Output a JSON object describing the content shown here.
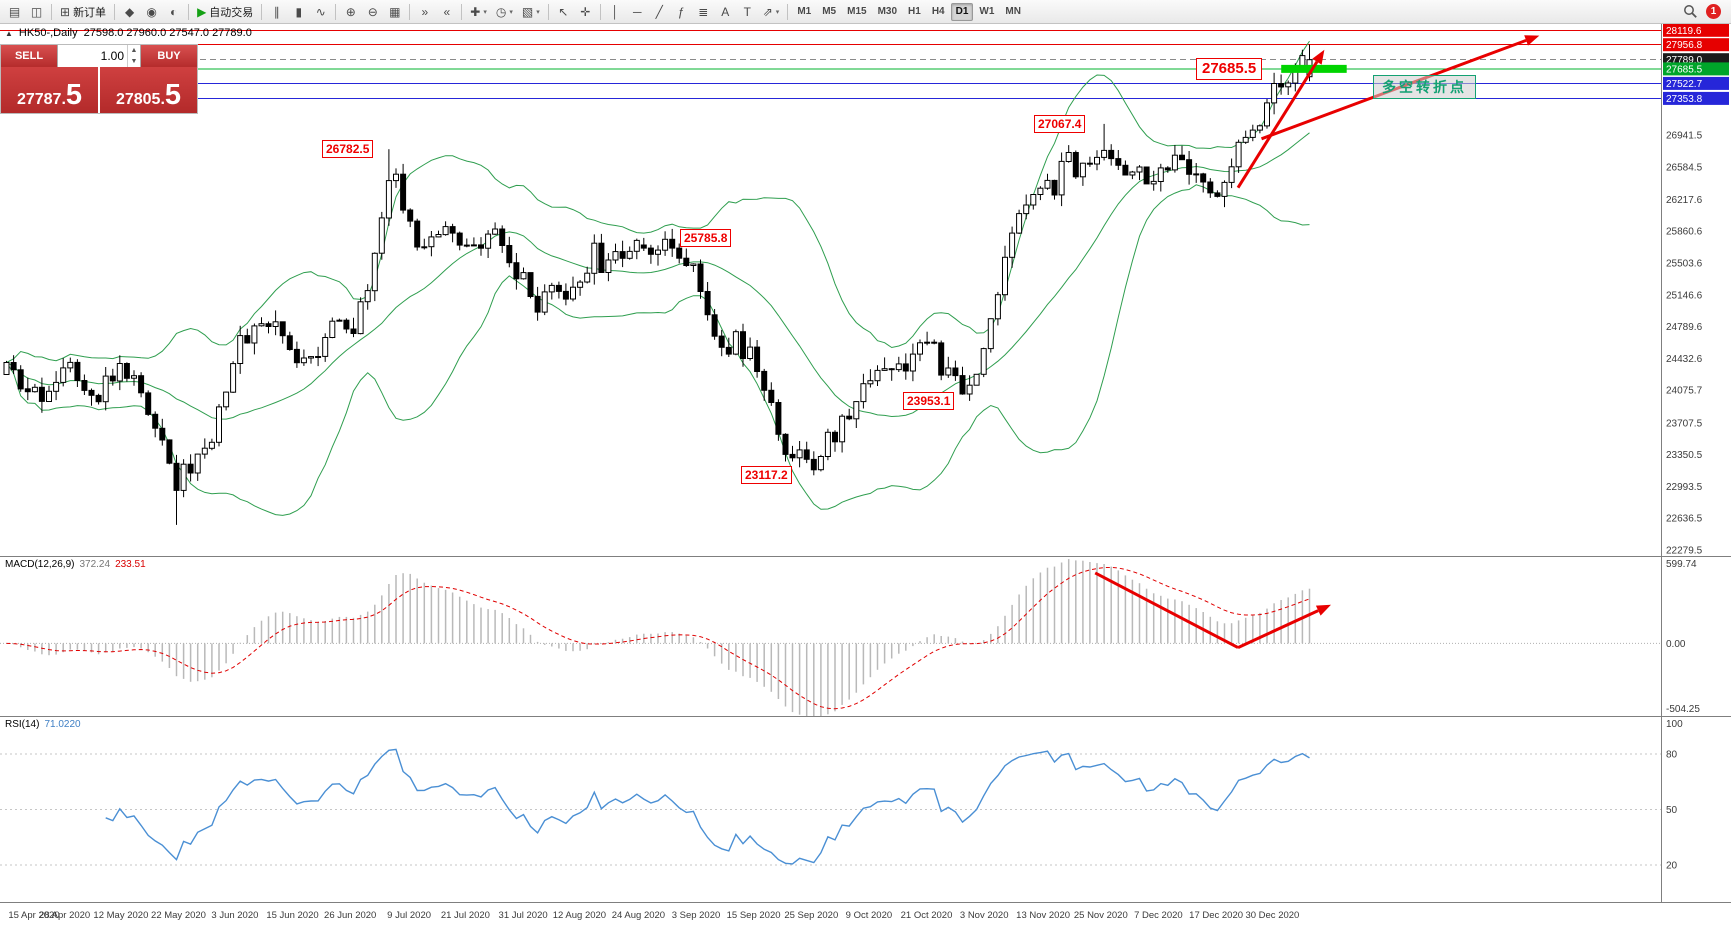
{
  "toolbar": {
    "items": [
      {
        "glyph": "▤",
        "name": "market-watch-icon"
      },
      {
        "glyph": "◫",
        "name": "data-window-icon"
      },
      {
        "sep": true
      },
      {
        "glyph": "⊞",
        "name": "new-order-icon",
        "label": "新订单"
      },
      {
        "sep": true
      },
      {
        "glyph": "◆",
        "name": "deposit-icon"
      },
      {
        "glyph": "◉",
        "name": "community-icon"
      },
      {
        "glyph": "◐",
        "name": "history-center-icon"
      },
      {
        "sep": true
      },
      {
        "glyph": "▶",
        "name": "autotrading-icon",
        "label": "自动交易",
        "green": true
      },
      {
        "sep": true
      },
      {
        "glyph": "∥",
        "name": "bar-chart-icon"
      },
      {
        "glyph": "▮",
        "name": "candlestick-chart-icon"
      },
      {
        "glyph": "∿",
        "name": "line-chart-icon"
      },
      {
        "sep": true
      },
      {
        "glyph": "⊕",
        "name": "zoom-in-icon"
      },
      {
        "glyph": "⊖",
        "name": "zoom-out-icon"
      },
      {
        "glyph": "▦",
        "name": "tile-windows-icon"
      },
      {
        "sep": true
      },
      {
        "glyph": "»",
        "name": "auto-scroll-icon"
      },
      {
        "glyph": "«",
        "name": "chart-shift-icon"
      },
      {
        "sep": true
      },
      {
        "glyph": "✚",
        "name": "indicators-icon",
        "caret": true
      },
      {
        "glyph": "◷",
        "name": "periods-icon",
        "caret": true
      },
      {
        "glyph": "▧",
        "name": "templates-icon",
        "caret": true
      },
      {
        "sep": true
      },
      {
        "glyph": "↖",
        "name": "cursor-icon"
      },
      {
        "glyph": "✛",
        "name": "crosshair-icon"
      },
      {
        "sep": true
      },
      {
        "glyph": "│",
        "name": "vertical-line-icon"
      },
      {
        "glyph": "─",
        "name": "horizontal-line-icon"
      },
      {
        "glyph": "╱",
        "name": "trendline-icon"
      },
      {
        "glyph": "ƒ",
        "name": "fibonacci-icon"
      },
      {
        "glyph": "≣",
        "name": "channel-icon"
      },
      {
        "glyph": "A",
        "name": "text-icon"
      },
      {
        "glyph": "T",
        "name": "label-icon"
      },
      {
        "glyph": "⇗",
        "name": "arrow-objects-icon",
        "caret": true
      },
      {
        "sep": true
      }
    ],
    "timeframes": [
      "M1",
      "M5",
      "M15",
      "M30",
      "H1",
      "H4",
      "D1",
      "W1",
      "MN"
    ],
    "active_timeframe": "D1",
    "badge": "1"
  },
  "chart_header": {
    "collapse": "▲",
    "symbol": "HK50-,Daily",
    "ohlc": "27598.0 27960.0 27547.0 27789.0"
  },
  "trade_panel": {
    "sell_label": "SELL",
    "buy_label": "BUY",
    "lot": "1.00",
    "sell_price": "27787.5",
    "buy_price": "27805.5"
  },
  "macd_panel": {
    "label": "MACD(12,26,9)",
    "value_main": "372.24",
    "value_signal": "233.51"
  },
  "rsi_panel": {
    "label": "RSI(14)",
    "value": "71.0220"
  },
  "chart_data": {
    "type": "candlestick",
    "symbol": "HK50-",
    "period": "Daily",
    "last_candle_ohlc": [
      27598.0,
      27960.0,
      27547.0,
      27789.0
    ],
    "main_ylim": [
      22210,
      28190
    ],
    "candle_count": 185,
    "bollinger": {
      "period": 20,
      "deviation": 2
    },
    "price_path": [
      [
        0.0,
        24250
      ],
      [
        0.023,
        23950
      ],
      [
        0.047,
        24450
      ],
      [
        0.069,
        24050
      ],
      [
        0.09,
        24350
      ],
      [
        0.107,
        23900
      ],
      [
        0.122,
        23600
      ],
      [
        0.128,
        22980
      ],
      [
        0.135,
        23120
      ],
      [
        0.153,
        23400
      ],
      [
        0.177,
        24550
      ],
      [
        0.195,
        24900
      ],
      [
        0.21,
        24700
      ],
      [
        0.221,
        24450
      ],
      [
        0.237,
        24550
      ],
      [
        0.252,
        24900
      ],
      [
        0.265,
        24750
      ],
      [
        0.279,
        25150
      ],
      [
        0.29,
        26250
      ],
      [
        0.296,
        26600
      ],
      [
        0.305,
        26100
      ],
      [
        0.317,
        25600
      ],
      [
        0.328,
        25850
      ],
      [
        0.34,
        26050
      ],
      [
        0.351,
        25650
      ],
      [
        0.363,
        25550
      ],
      [
        0.374,
        25850
      ],
      [
        0.385,
        25500
      ],
      [
        0.397,
        25250
      ],
      [
        0.408,
        24950
      ],
      [
        0.42,
        25150
      ],
      [
        0.431,
        25050
      ],
      [
        0.44,
        25350
      ],
      [
        0.45,
        25600
      ],
      [
        0.462,
        25400
      ],
      [
        0.473,
        25650
      ],
      [
        0.485,
        25780
      ],
      [
        0.496,
        25700
      ],
      [
        0.508,
        25620
      ],
      [
        0.519,
        25720
      ],
      [
        0.529,
        25350
      ],
      [
        0.538,
        24900
      ],
      [
        0.55,
        24550
      ],
      [
        0.561,
        24650
      ],
      [
        0.573,
        24400
      ],
      [
        0.584,
        23900
      ],
      [
        0.595,
        23550
      ],
      [
        0.607,
        23300
      ],
      [
        0.617,
        23200
      ],
      [
        0.626,
        23400
      ],
      [
        0.637,
        23600
      ],
      [
        0.649,
        23900
      ],
      [
        0.661,
        24200
      ],
      [
        0.672,
        24450
      ],
      [
        0.683,
        24300
      ],
      [
        0.695,
        24500
      ],
      [
        0.705,
        24600
      ],
      [
        0.718,
        24350
      ],
      [
        0.729,
        24100
      ],
      [
        0.737,
        24020
      ],
      [
        0.749,
        24500
      ],
      [
        0.76,
        25200
      ],
      [
        0.771,
        25800
      ],
      [
        0.782,
        26100
      ],
      [
        0.794,
        26500
      ],
      [
        0.805,
        26400
      ],
      [
        0.817,
        26650
      ],
      [
        0.828,
        26550
      ],
      [
        0.84,
        26850
      ],
      [
        0.851,
        26700
      ],
      [
        0.863,
        26450
      ],
      [
        0.874,
        26550
      ],
      [
        0.882,
        26400
      ],
      [
        0.893,
        26650
      ],
      [
        0.905,
        26500
      ],
      [
        0.916,
        26350
      ],
      [
        0.926,
        26250
      ],
      [
        0.935,
        26500
      ],
      [
        0.947,
        26800
      ],
      [
        0.958,
        27100
      ],
      [
        0.969,
        27300
      ],
      [
        0.981,
        27550
      ],
      [
        0.992,
        27680
      ],
      [
        1.0,
        27789
      ]
    ],
    "key_points": [
      {
        "f": 0.128,
        "low": 22560
      },
      {
        "f": 0.296,
        "high": 26782.5
      },
      {
        "f": 0.49,
        "high": 25785.8
      },
      {
        "f": 0.617,
        "low": 23117.2
      },
      {
        "f": 0.737,
        "low": 23953.1
      },
      {
        "f": 0.84,
        "high": 27067.4
      }
    ],
    "levels": [
      {
        "price": 28119.6,
        "label": "28119.6",
        "color": "#e60000",
        "style": "solid",
        "label_bg": "#e60000"
      },
      {
        "price": 27956.8,
        "label": "27956.8",
        "color": "#e60000",
        "style": "solid",
        "label_bg": "#e60000"
      },
      {
        "price": 27789.0,
        "label": "27789.0",
        "color": "#8a8a8a",
        "style": "dashed",
        "label_bg": "#1b1b1b"
      },
      {
        "price": 27685.5,
        "label": "27685.5",
        "color": "#00b32c",
        "style": "solid",
        "label_bg": "#00a52a",
        "thick_segment": [
          0.978,
          1.028
        ]
      },
      {
        "price": 27522.7,
        "label": "27522.7",
        "color": "#2626d9",
        "style": "solid",
        "label_bg": "#2626d9"
      },
      {
        "price": 27353.8,
        "label": "27353.8",
        "color": "#2626d9",
        "style": "solid",
        "label_bg": "#2626d9"
      }
    ],
    "gridline_labels": [
      "26941.5",
      "26584.5",
      "26217.6",
      "25860.6",
      "25503.6",
      "25146.6",
      "24789.6",
      "24432.6",
      "24075.7",
      "23707.5",
      "23350.5",
      "22993.5",
      "22636.5",
      "22279.5"
    ],
    "macd": {
      "fast": 12,
      "slow": 26,
      "signal": 9,
      "ylim": [
        -504.25,
        599.74
      ],
      "scale_labels": [
        "599.74",
        "0.00",
        "-504.25"
      ]
    },
    "rsi": {
      "period": 14,
      "ylim": [
        0,
        100
      ],
      "levels": [
        80,
        50,
        20
      ],
      "scale": [
        100,
        80,
        50,
        20
      ]
    },
    "callouts": [
      {
        "f": 0.246,
        "price": 26782.5,
        "text": "26782.5",
        "big": false
      },
      {
        "f": 0.519,
        "price": 25785.8,
        "text": "25785.8",
        "big": false
      },
      {
        "f": 0.566,
        "price": 23117.2,
        "text": "23117.2",
        "big": false
      },
      {
        "f": 0.689,
        "price": 23953.1,
        "text": "23953.1",
        "big": false
      },
      {
        "f": 0.789,
        "price": 27067.4,
        "text": "27067.4",
        "big": false
      },
      {
        "f": 0.913,
        "price": 27685.5,
        "text": "27685.5",
        "big": true
      }
    ],
    "note": {
      "f": 1.048,
      "price": 27480,
      "text": "多空转折点"
    },
    "arrows_main": [
      {
        "x1f": 0.945,
        "p1": 26350,
        "x2f": 1.011,
        "p2": 27900
      },
      {
        "x1f": 0.963,
        "p1": 26900,
        "x2f": 1.175,
        "p2": 28060
      }
    ],
    "macd_arrow": [
      [
        0.836,
        0.1
      ],
      [
        0.945,
        0.57
      ],
      [
        1.016,
        0.3
      ]
    ],
    "dates": [
      {
        "f": 0.003,
        "label": "15 Apr 2020"
      },
      {
        "f": 0.047,
        "label": "28 Apr 2020"
      },
      {
        "f": 0.09,
        "label": "12 May 2020"
      },
      {
        "f": 0.134,
        "label": "22 May 2020"
      },
      {
        "f": 0.177,
        "label": "3 Jun 2020"
      },
      {
        "f": 0.221,
        "label": "15 Jun 2020"
      },
      {
        "f": 0.265,
        "label": "26 Jun 2020"
      },
      {
        "f": 0.31,
        "label": "9 Jul 2020"
      },
      {
        "f": 0.353,
        "label": "21 Jul 2020"
      },
      {
        "f": 0.397,
        "label": "31 Jul 2020"
      },
      {
        "f": 0.44,
        "label": "12 Aug 2020"
      },
      {
        "f": 0.485,
        "label": "24 Aug 2020"
      },
      {
        "f": 0.529,
        "label": "3 Sep 2020"
      },
      {
        "f": 0.573,
        "label": "15 Sep 2020"
      },
      {
        "f": 0.617,
        "label": "25 Sep 2020"
      },
      {
        "f": 0.661,
        "label": "9 Oct 2020"
      },
      {
        "f": 0.705,
        "label": "21 Oct 2020"
      },
      {
        "f": 0.749,
        "label": "3 Nov 2020"
      },
      {
        "f": 0.794,
        "label": "13 Nov 2020"
      },
      {
        "f": 0.838,
        "label": "25 Nov 2020"
      },
      {
        "f": 0.882,
        "label": "7 Dec 2020"
      },
      {
        "f": 0.926,
        "label": "17 Dec 2020"
      },
      {
        "f": 0.969,
        "label": "30 Dec 2020"
      }
    ]
  }
}
